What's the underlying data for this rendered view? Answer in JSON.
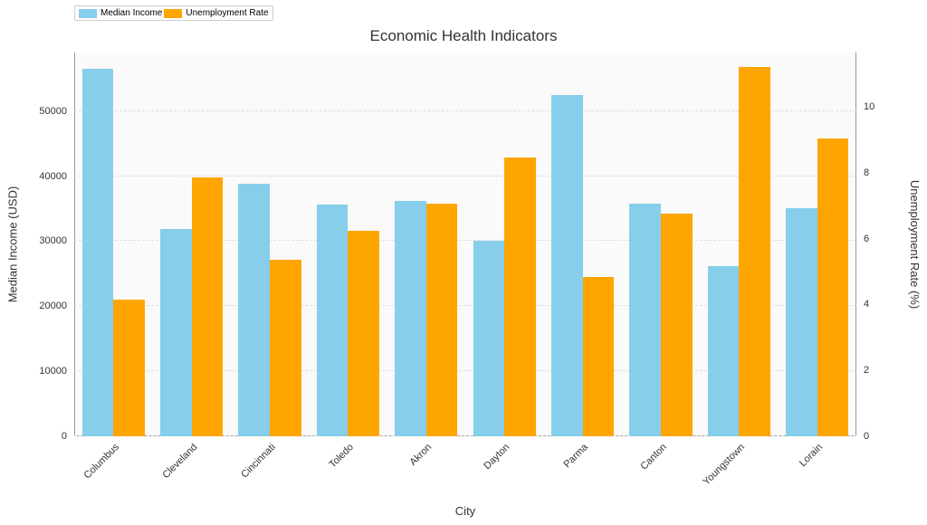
{
  "chart": {
    "type": "bar",
    "title": "Economic Health Indicators",
    "title_fontsize": 17,
    "background_color": "#ffffff",
    "plot_background_color": "#fafafa",
    "grid_color": "#dddddd",
    "grid_dash": true,
    "label_fontsize": 13,
    "tick_fontsize": 11,
    "text_color": "#333333",
    "bar_width": 0.4,
    "categories": [
      "Columbus",
      "Cleveland",
      "Cincinnati",
      "Toledo",
      "Akron",
      "Dayton",
      "Parma",
      "Canton",
      "Youngstown",
      "Lorain"
    ],
    "x_label": "City",
    "series": [
      {
        "name": "Median Income",
        "axis": "left",
        "color": "#87ceeb",
        "values": [
          56500,
          31800,
          38800,
          35600,
          36200,
          30000,
          52500,
          35700,
          26100,
          35000
        ]
      },
      {
        "name": "Unemployment Rate",
        "axis": "right",
        "color": "#ffa500",
        "values": [
          4.15,
          7.85,
          5.35,
          6.25,
          7.05,
          8.45,
          4.85,
          6.75,
          11.2,
          9.05
        ]
      }
    ],
    "y_left": {
      "label": "Median Income (USD)",
      "min": 0,
      "max": 59000,
      "ticks": [
        0,
        10000,
        20000,
        30000,
        40000,
        50000
      ]
    },
    "y_right": {
      "label": "Unemployment Rate (%)",
      "min": 0,
      "max": 11.65,
      "ticks": [
        0,
        2,
        4,
        6,
        8,
        10
      ]
    },
    "legend": {
      "position": "top-left",
      "items": [
        "Median Income",
        "Unemployment Rate"
      ]
    }
  }
}
